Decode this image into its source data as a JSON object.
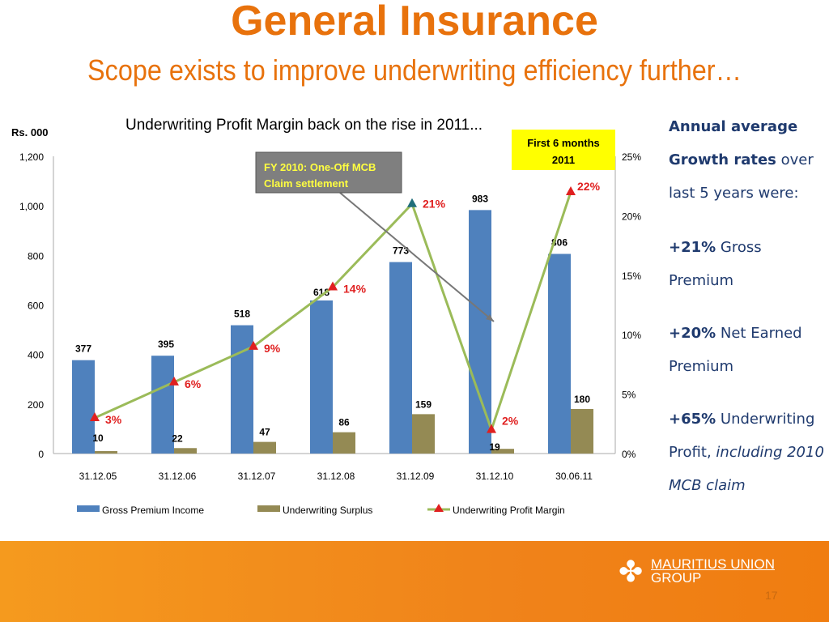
{
  "header": {
    "title": "General Insurance",
    "subtitle": "Scope exists to improve underwriting efficiency further…"
  },
  "side_panel": {
    "heading1": "Annual average",
    "heading2": "Growth rates",
    "text1": " over last 5 years were:",
    "items": [
      {
        "value": "+21%",
        "label": " Gross Premium"
      },
      {
        "value": "+20%",
        "label": " Net Earned Premium"
      },
      {
        "value": "+65%",
        "label": " Underwriting Profit, ",
        "italic": "including 2010 MCB claim"
      }
    ]
  },
  "footer": {
    "logo_line1": "MAURITIUS UNION",
    "logo_line2": "GROUP",
    "page_number": "17"
  },
  "chart_data": {
    "type": "bar+line",
    "title": "Underwriting Profit Margin back on the rise in 2011...",
    "ylabel": "Rs. 000",
    "categories": [
      "31.12.05",
      "31.12.06",
      "31.12.07",
      "31.12.08",
      "31.12.09",
      "31.12.10",
      "30.06.11"
    ],
    "ylim": [
      0,
      1200
    ],
    "yticks": [
      "0",
      "200",
      "400",
      "600",
      "800",
      "1,000",
      "1,200"
    ],
    "y2lim": [
      0,
      25
    ],
    "y2ticks": [
      "0%",
      "5%",
      "10%",
      "15%",
      "20%",
      "25%"
    ],
    "series": [
      {
        "name": "Gross Premium Income",
        "type": "bar",
        "color": "#4f81bd",
        "values": [
          377,
          395,
          518,
          618,
          773,
          983,
          806
        ]
      },
      {
        "name": "Underwriting Surplus",
        "type": "bar",
        "color": "#948a54",
        "values": [
          10,
          22,
          47,
          86,
          159,
          19,
          180
        ]
      },
      {
        "name": "Underwriting Profit Margin",
        "type": "line",
        "axis": "right",
        "color": "#9bbb59",
        "values": [
          3,
          6,
          9,
          14,
          21,
          2,
          22
        ]
      }
    ],
    "annotations": {
      "mcb": "FY 2010: One-Off MCB Claim settlement",
      "h1_a": "First 6 months",
      "h1_b": "2011"
    },
    "legend": "bottom"
  }
}
